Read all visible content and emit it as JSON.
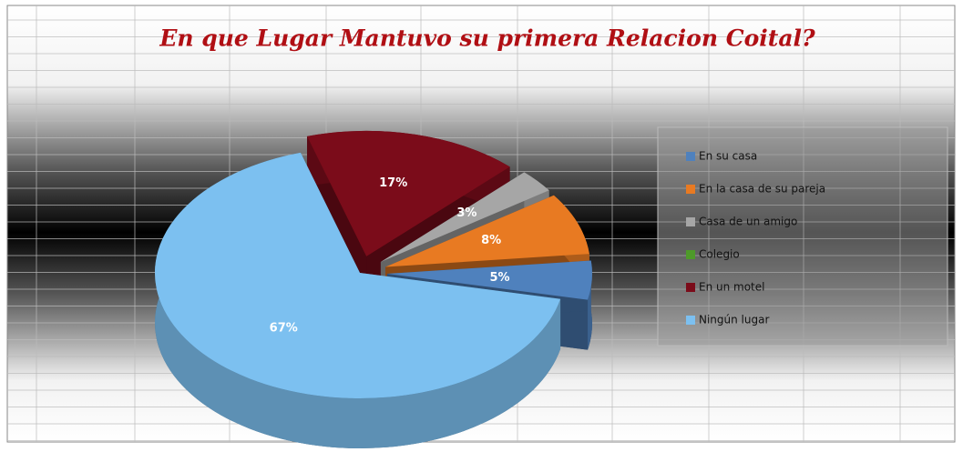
{
  "chart_data": {
    "type": "pie",
    "title": "En que Lugar Mantuvo su primera Relacion Coital?",
    "categories": [
      "En su casa",
      "En la casa de su pareja",
      "Casa de un amigo",
      "Colegio",
      "En un motel",
      "Ningún lugar"
    ],
    "values": [
      5,
      8,
      3,
      0,
      17,
      67
    ],
    "value_labels": [
      "5%",
      "8%",
      "3%",
      null,
      "17%",
      "67%"
    ],
    "colors": [
      "#4f81bd",
      "#e87a22",
      "#a6a6a6",
      "#4e9a2a",
      "#7b0c1a",
      "#7cc0f0"
    ],
    "legend": "right"
  }
}
